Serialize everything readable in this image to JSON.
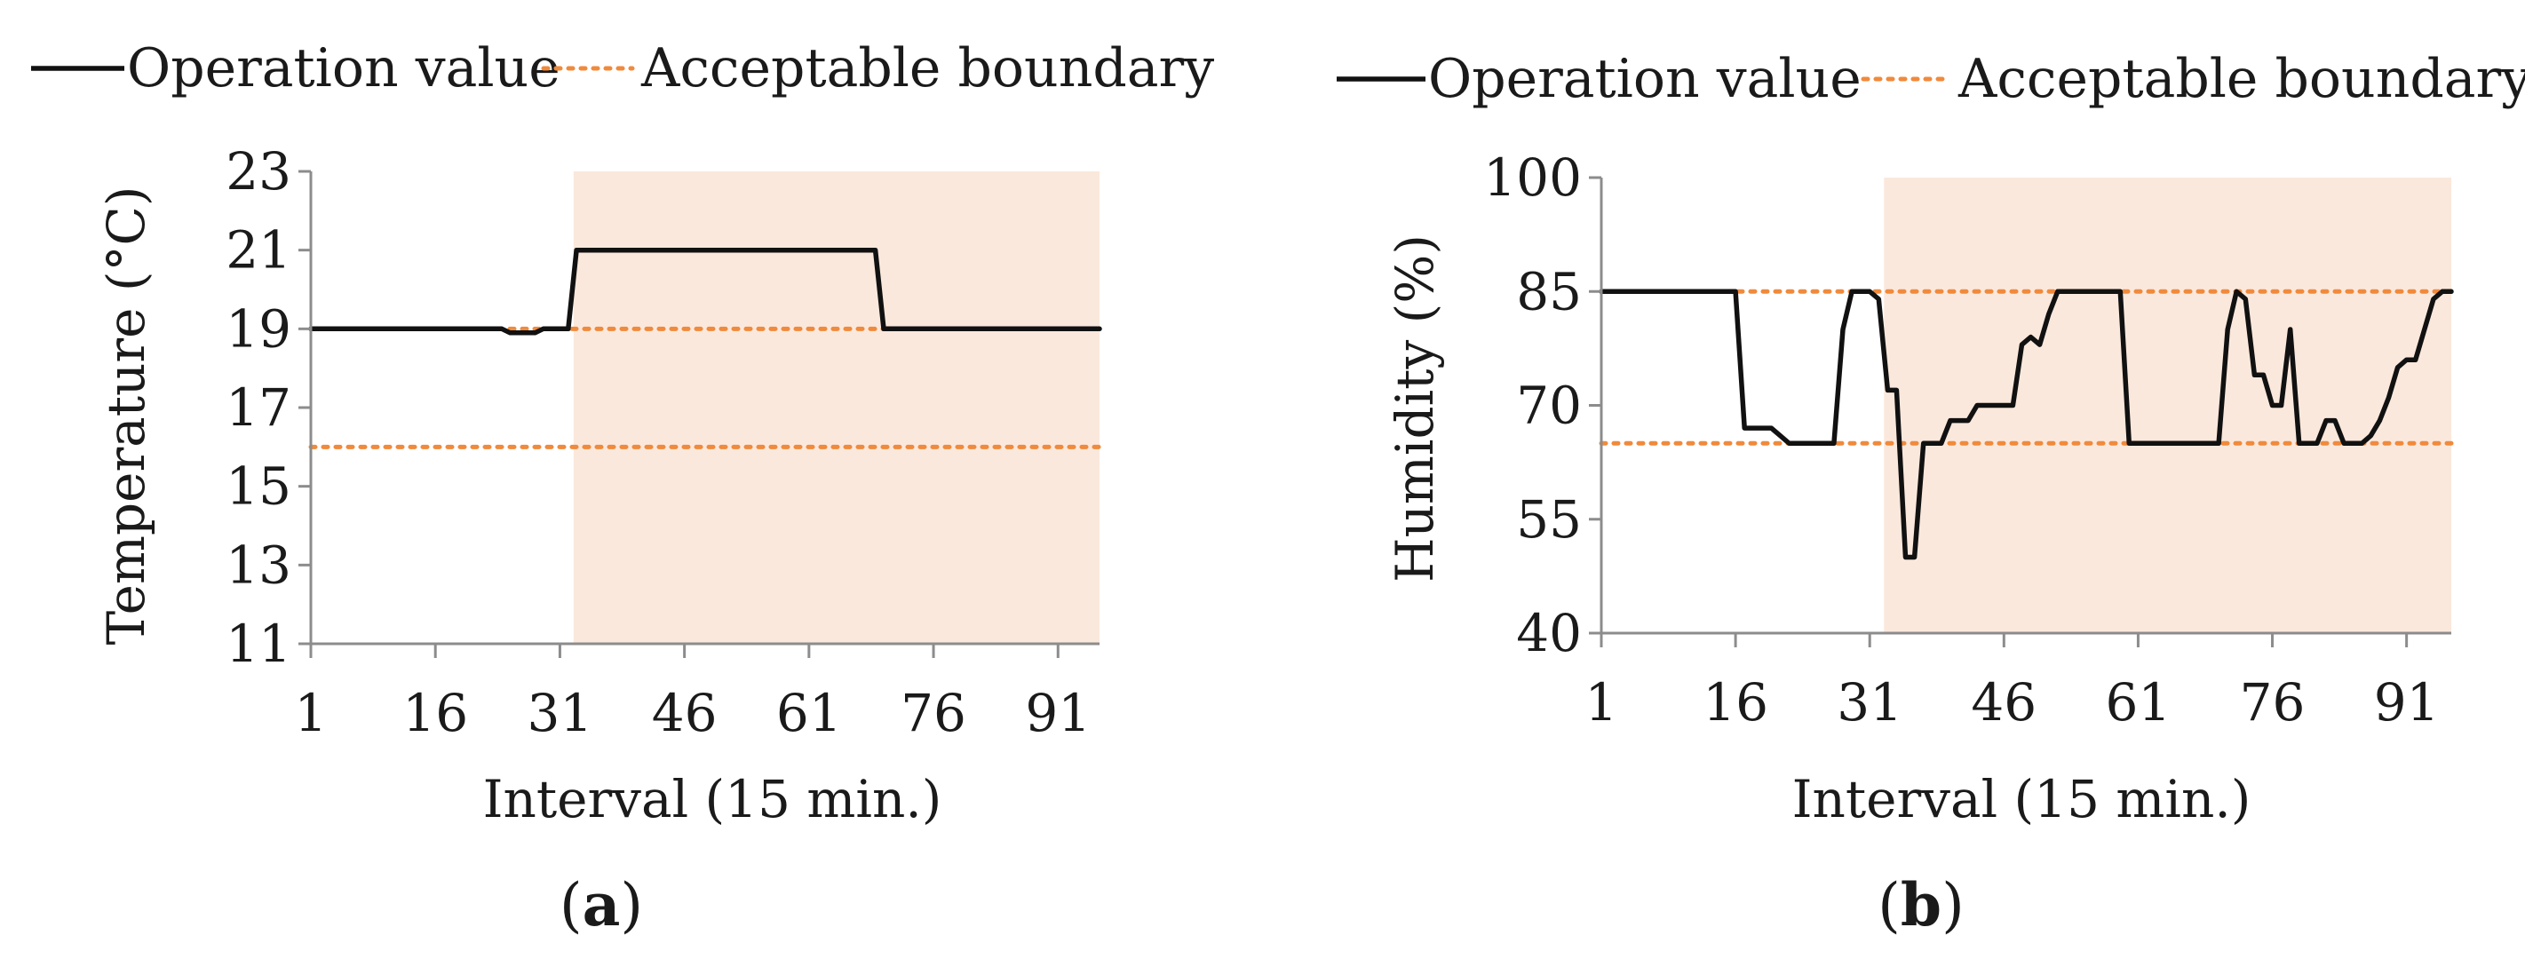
{
  "chart_data": [
    {
      "panel": "a",
      "type": "line",
      "legend": [
        "Operation value",
        "Acceptable boundary"
      ],
      "ylabel": "Temperature (°C)",
      "xlabel": "Interval (15 min.)",
      "xlim": [
        1,
        96
      ],
      "ylim": [
        11,
        23
      ],
      "xticks": [
        1,
        16,
        31,
        46,
        61,
        76,
        91
      ],
      "yticks": [
        11,
        13,
        15,
        17,
        19,
        21,
        23
      ],
      "shaded_region": [
        32,
        96
      ],
      "boundaries": [
        19,
        16
      ],
      "series": [
        {
          "name": "Operation value",
          "x": [
            1,
            24,
            25,
            28,
            29,
            31,
            32,
            33,
            68,
            69,
            70,
            96
          ],
          "y": [
            19,
            19,
            18.9,
            18.9,
            19,
            19,
            19,
            21,
            21,
            21,
            19,
            19
          ]
        }
      ],
      "label_prefix": "(",
      "label_letter": "a",
      "label_suffix": ")"
    },
    {
      "panel": "b",
      "type": "line",
      "legend": [
        "Operation value",
        "Acceptable boundary"
      ],
      "ylabel": "Humidity (%)",
      "xlabel": "Interval (15 min.)",
      "xlim": [
        1,
        96
      ],
      "ylim": [
        40,
        100
      ],
      "xticks": [
        1,
        16,
        31,
        46,
        61,
        76,
        91
      ],
      "yticks": [
        40,
        55,
        70,
        85,
        100
      ],
      "shaded_region": [
        32,
        96
      ],
      "boundaries": [
        85,
        65
      ],
      "series": [
        {
          "name": "Operation value",
          "x": [
            1,
            16,
            17,
            18,
            19,
            20,
            21,
            22,
            23,
            26,
            27,
            28,
            29,
            30,
            31,
            32,
            33,
            34,
            35,
            36,
            37,
            38,
            39,
            40,
            41,
            42,
            43,
            44,
            45,
            46,
            47,
            48,
            49,
            50,
            51,
            52,
            53,
            54,
            55,
            56,
            57,
            58,
            59,
            60,
            61,
            62,
            63,
            64,
            65,
            66,
            67,
            68,
            69,
            70,
            71,
            72,
            73,
            74,
            75,
            76,
            77,
            78,
            79,
            80,
            81,
            82,
            83,
            84,
            85,
            86,
            87,
            88,
            89,
            90,
            91,
            92,
            93,
            94,
            95,
            96
          ],
          "y": [
            85,
            85,
            67,
            67,
            67,
            67,
            66,
            65,
            65,
            65,
            65,
            80,
            85,
            85,
            85,
            84,
            72,
            72,
            50,
            50,
            65,
            65,
            65,
            68,
            68,
            68,
            70,
            70,
            70,
            70,
            70,
            78,
            79,
            78,
            82,
            85,
            85,
            85,
            85,
            85,
            85,
            85,
            85,
            65,
            65,
            65,
            65,
            65,
            65,
            65,
            65,
            65,
            65,
            65,
            80,
            85,
            84,
            74,
            74,
            70,
            70,
            80,
            65,
            65,
            65,
            68,
            68,
            65,
            65,
            65,
            66,
            68,
            71,
            75,
            76,
            76,
            80,
            84,
            85,
            85
          ]
        }
      ],
      "label_prefix": "(",
      "label_letter": "b",
      "label_suffix": ")"
    }
  ]
}
